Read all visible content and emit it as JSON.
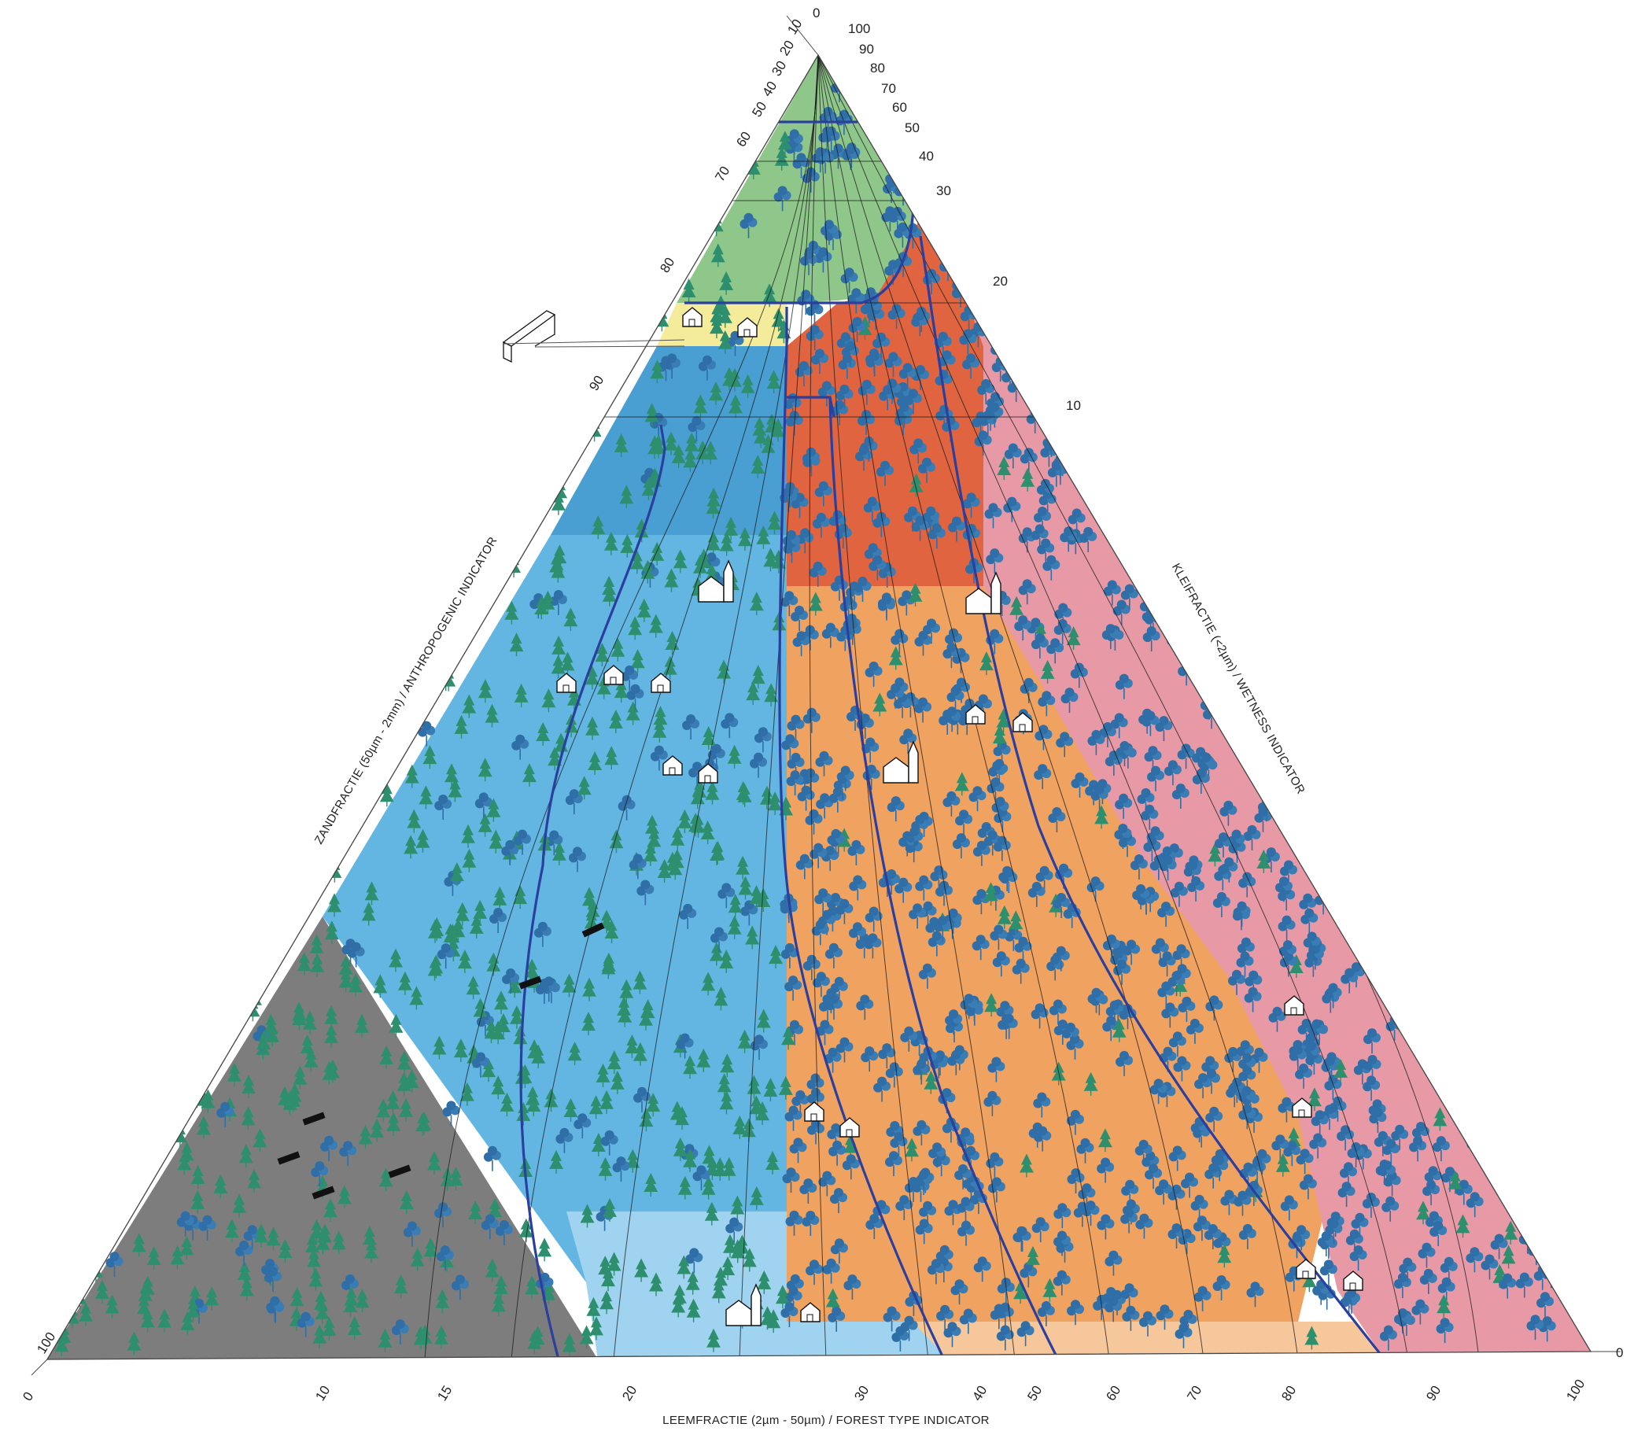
{
  "axes": {
    "top_right_ticks": [
      "0",
      "100",
      "90",
      "80",
      "70",
      "60",
      "50",
      "40",
      "30",
      "20",
      "10"
    ],
    "top_left_ticks": [
      "10",
      "20",
      "30",
      "40",
      "50",
      "60",
      "70",
      "80",
      "90"
    ],
    "bottom_ticks": [
      "10",
      "15",
      "20",
      "30",
      "40",
      "50",
      "60",
      "70",
      "80",
      "90",
      "100"
    ],
    "corner_left_top": "100",
    "corner_left_bottom": "0",
    "corner_right": "0",
    "left_title": "ZANDFRACTIE (50µm - 2mm) / ANTHROPOGENIC INDICATOR",
    "right_title": "KLEIFRACTIE (<2µm) / WETNESS INDICATOR",
    "bottom_title": "LEEMFRACTIE (2µm - 50µm) / FOREST TYPE INDICATOR"
  },
  "colors": {
    "green_zone": "#8fc78a",
    "yellow_zone": "#f4ec9a",
    "blue_dark": "#4a9fd2",
    "blue_mid": "#63b6e2",
    "blue_light": "#9fd3ef",
    "grey_zone": "#7d7d7d",
    "red_zone": "#e0643f",
    "orange_zone": "#f0a260",
    "orange_light": "#f6c79a",
    "pink_zone": "#e79aa6",
    "boundary": "#2a3f9e",
    "conifer": "#2e8f6e",
    "broadleaf": "#2f6ea6"
  },
  "icons": [
    "conifer-tree-icon",
    "broadleaf-tree-icon",
    "house-icon",
    "church-icon",
    "tower-icon",
    "boat-icon"
  ]
}
